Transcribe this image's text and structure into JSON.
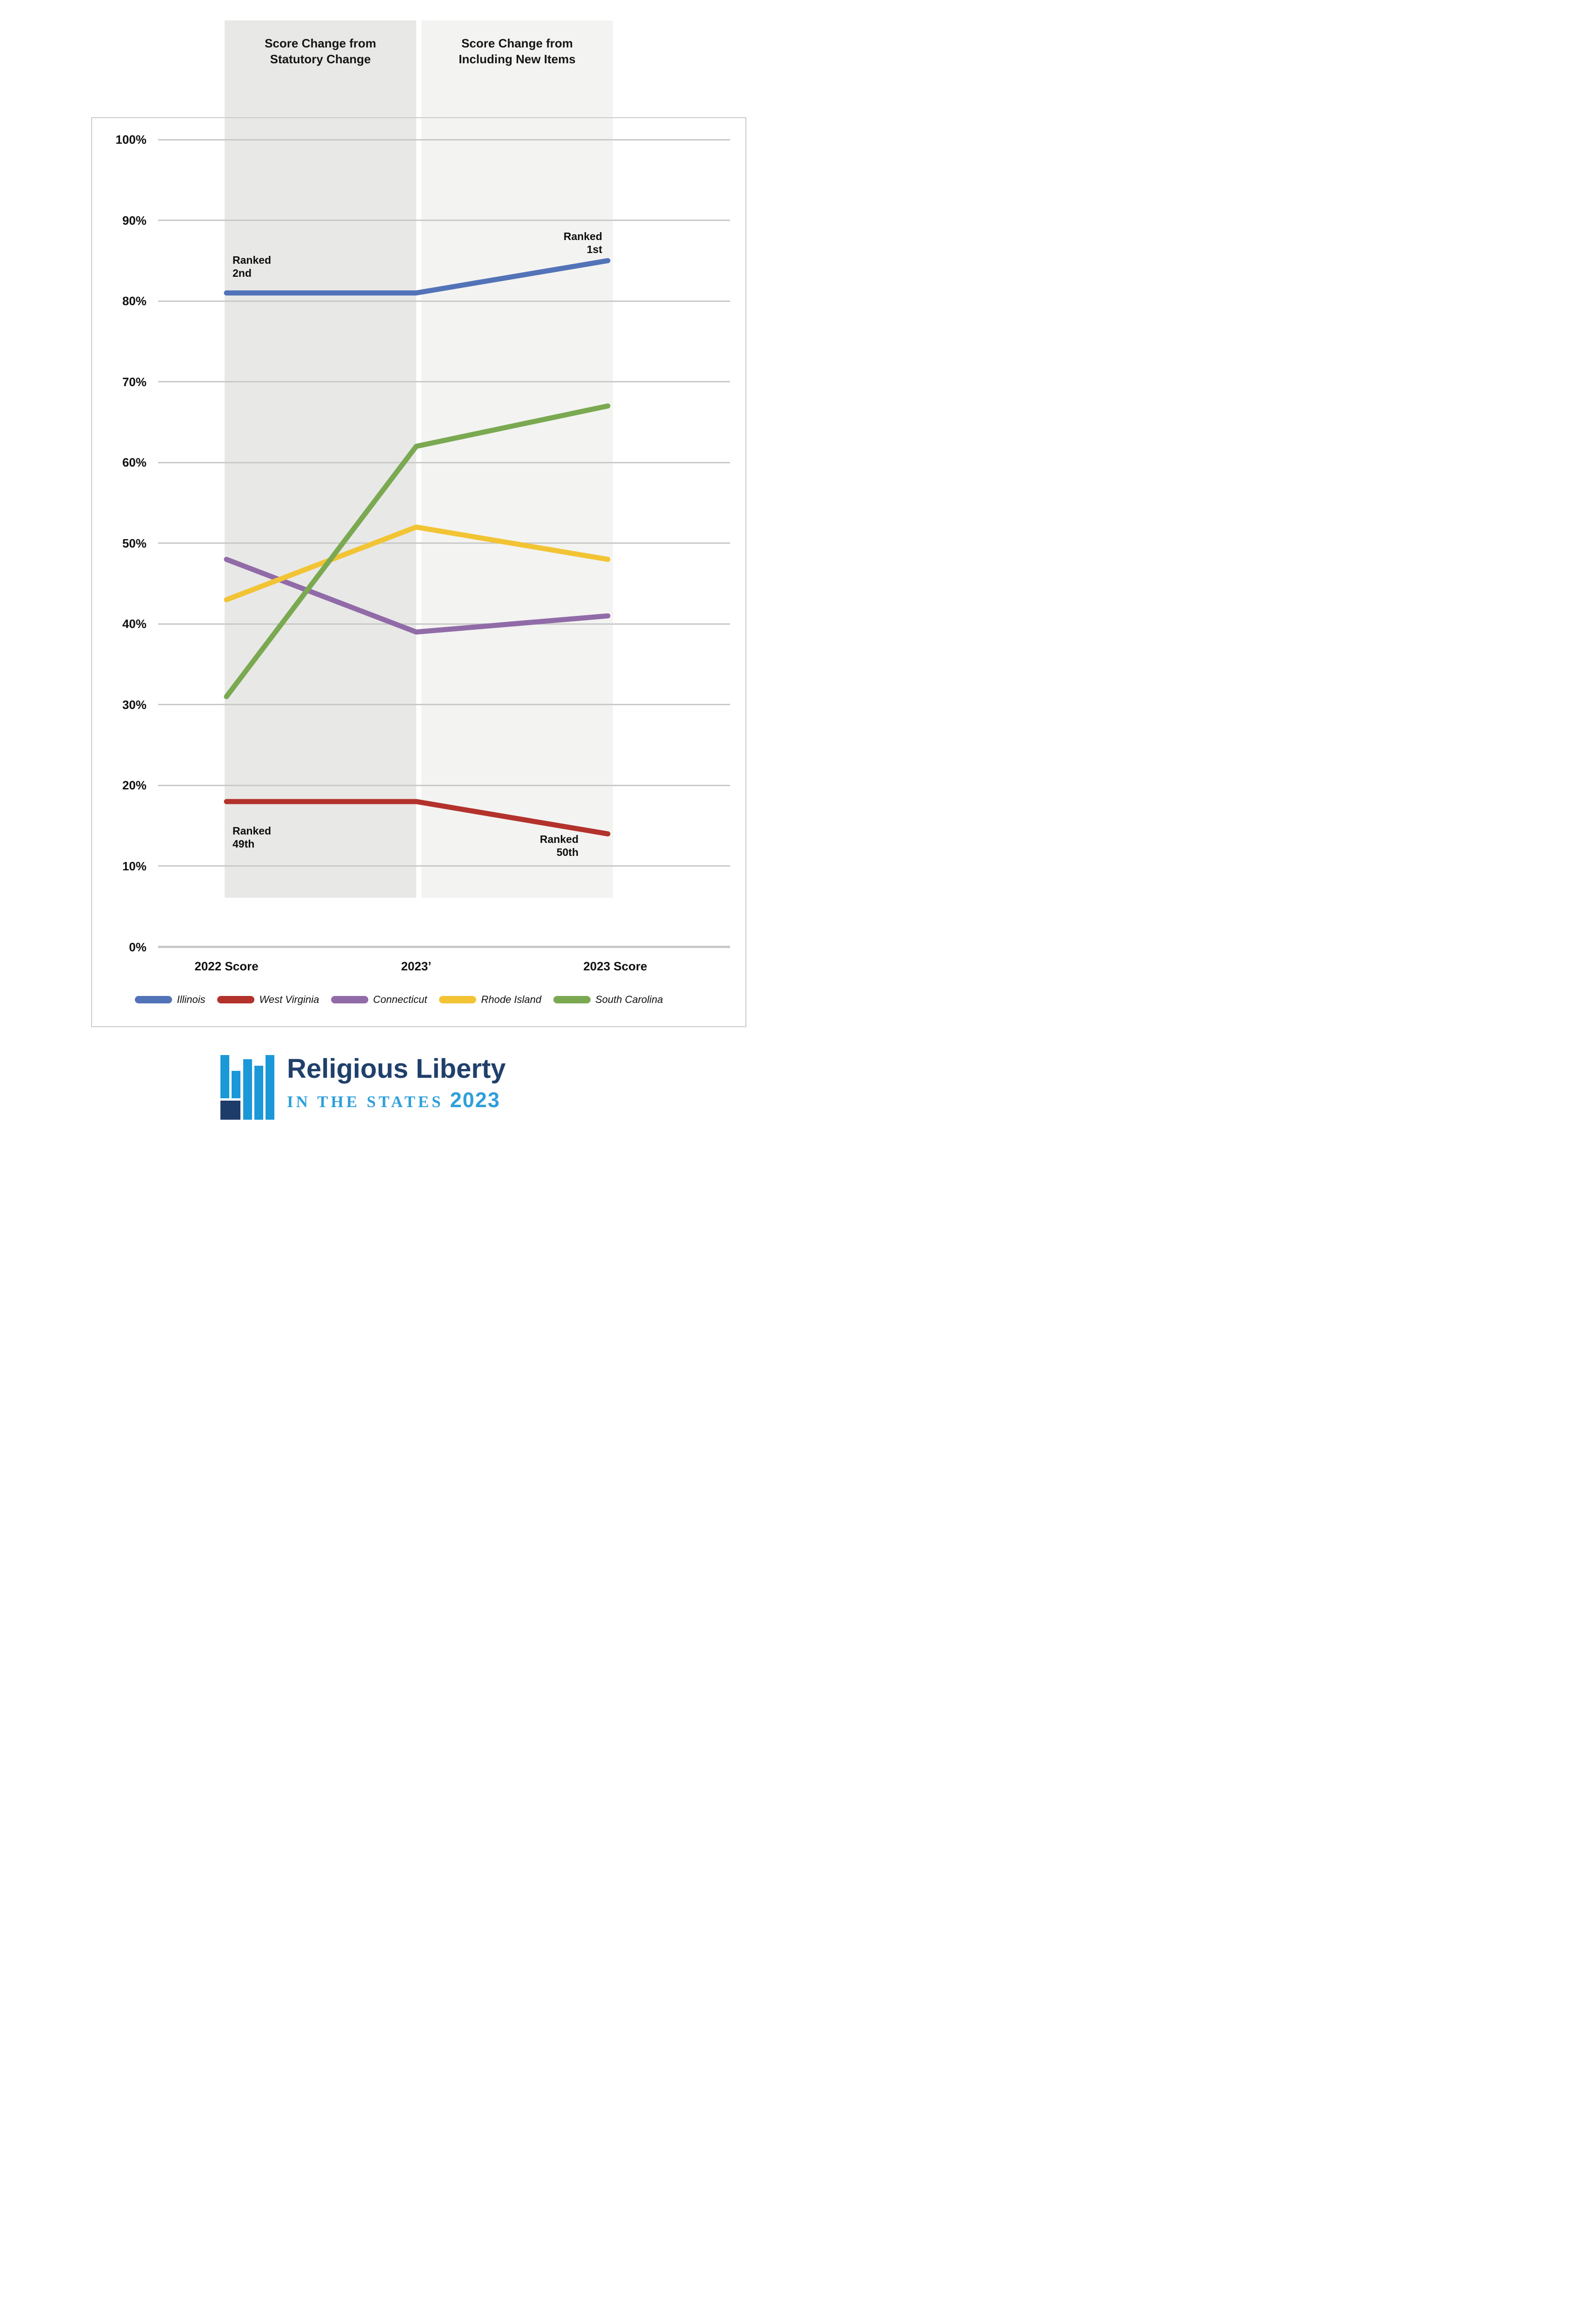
{
  "headers": [
    {
      "text": "Score Change from\nStatutory Change"
    },
    {
      "text": "Score Change from\nIncluding New Items"
    }
  ],
  "chart_data": {
    "type": "line",
    "categories": [
      "2022 Score",
      "2023’",
      "2023 Score"
    ],
    "series": [
      {
        "name": "Illinois",
        "color": "#5273b8",
        "values": [
          81,
          81,
          85
        ]
      },
      {
        "name": "West Virginia",
        "color": "#b3322c",
        "values": [
          18,
          18,
          14
        ]
      },
      {
        "name": "Connecticut",
        "color": "#916ba8",
        "values": [
          48,
          39,
          41
        ]
      },
      {
        "name": "Rhode Island",
        "color": "#f2c434",
        "values": [
          43,
          52,
          48
        ]
      },
      {
        "name": "South Carolina",
        "color": "#7aa951",
        "values": [
          31,
          62,
          67
        ]
      }
    ],
    "ylim": [
      0,
      100
    ],
    "y_tick_step": 10,
    "y_tick_suffix": "%",
    "grid": "horizontal",
    "legend_position": "bottom",
    "band_labels": [
      "Score Change from Statutory Change",
      "Score Change from Including New Items"
    ],
    "annotations": [
      {
        "text": "Ranked\n2nd",
        "series": "Illinois",
        "at": "2022 Score"
      },
      {
        "text": "Ranked\n1st",
        "series": "Illinois",
        "at": "2023 Score"
      },
      {
        "text": "Ranked\n49th",
        "series": "West Virginia",
        "at": "2022 Score"
      },
      {
        "text": "Ranked\n50th",
        "series": "West Virginia",
        "at": "2023 Score"
      }
    ]
  },
  "footer_logo": {
    "title": "Religious Liberty",
    "subtitle": "IN THE STATES",
    "year": "2023",
    "title_color": "#20406b",
    "accent_color": "#2f9fd9",
    "icon_blue": "#1b98d7",
    "icon_navy": "#1e3c69"
  }
}
